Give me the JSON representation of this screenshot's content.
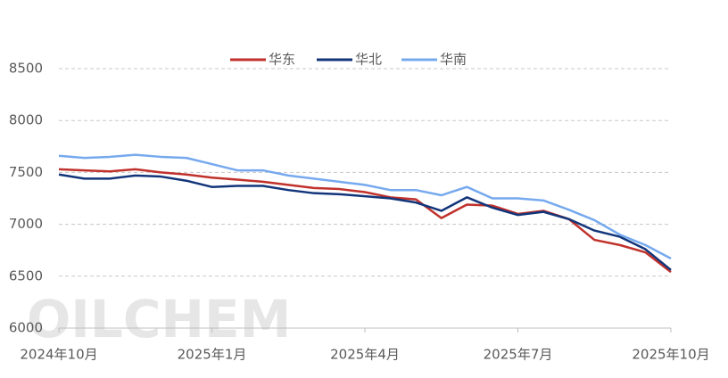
{
  "chart_data": {
    "type": "line",
    "watermark": "OILCHEM",
    "x": [
      0,
      0.5,
      1,
      1.5,
      2,
      2.5,
      3,
      3.5,
      4,
      4.5,
      5,
      5.5,
      6,
      6.5,
      7,
      7.5,
      8,
      8.5,
      9,
      9.5,
      10,
      10.5,
      11,
      11.5,
      12
    ],
    "series": [
      {
        "name": "华东",
        "color": "#c0312b",
        "values": [
          7530,
          7520,
          7510,
          7530,
          7500,
          7480,
          7450,
          7430,
          7410,
          7380,
          7350,
          7340,
          7310,
          7260,
          7240,
          7060,
          7190,
          7180,
          7100,
          7130,
          7050,
          6850,
          6800,
          6730,
          6540
        ]
      },
      {
        "name": "华北",
        "color": "#12357a",
        "values": [
          7480,
          7440,
          7440,
          7470,
          7460,
          7420,
          7360,
          7370,
          7370,
          7330,
          7300,
          7290,
          7270,
          7250,
          7210,
          7130,
          7260,
          7160,
          7090,
          7120,
          7050,
          6940,
          6880,
          6760,
          6560
        ]
      },
      {
        "name": "华南",
        "color": "#76a9ee",
        "values": [
          7660,
          7640,
          7650,
          7670,
          7650,
          7640,
          7580,
          7520,
          7520,
          7470,
          7440,
          7410,
          7380,
          7330,
          7330,
          7280,
          7360,
          7250,
          7250,
          7230,
          7140,
          7040,
          6900,
          6800,
          6670
        ]
      }
    ],
    "xlim": [
      0,
      12
    ],
    "xticks": [
      {
        "value": 0,
        "label": "2024年10月"
      },
      {
        "value": 3,
        "label": "2025年1月"
      },
      {
        "value": 6,
        "label": "2025年4月"
      },
      {
        "value": 9,
        "label": "2025年7月"
      },
      {
        "value": 12,
        "label": "2025年10月"
      }
    ],
    "ylim": [
      6000,
      8500
    ],
    "yticks": [
      6000,
      6500,
      7000,
      7500,
      8000,
      8500
    ],
    "grid": true,
    "legend": "top"
  }
}
